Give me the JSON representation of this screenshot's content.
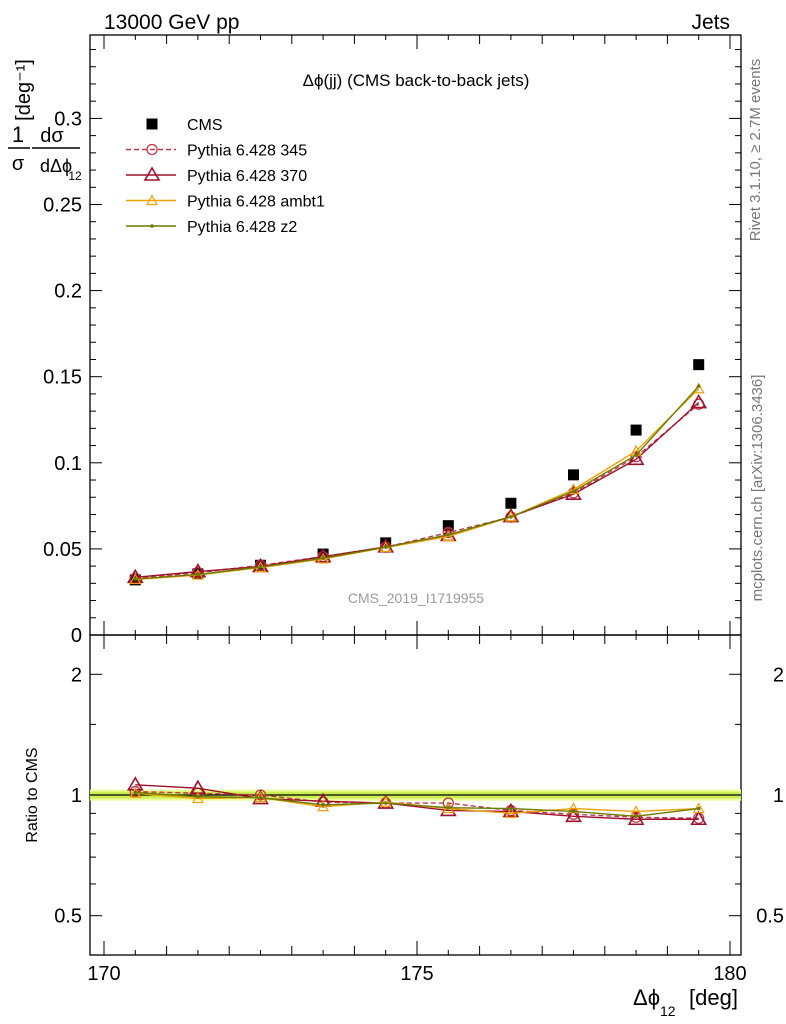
{
  "header": {
    "left": "13000 GeV pp",
    "right": "Jets"
  },
  "side_labels": {
    "rivet": "Rivet 3.1.10, ≥ 2.7M events",
    "mcplots": "mcplots.cern.ch [arXiv:1306.3436]"
  },
  "colors": {
    "cms": "#000000",
    "p345": "#c0394b",
    "p370": "#a0102a",
    "ambt1": "#f0a000",
    "z2": "#6b7a00",
    "band_inner": "#ccee55",
    "band_outer": "#eeff99"
  },
  "chart_data": [
    {
      "type": "scatter",
      "panel": "main",
      "title": "Δϕ(jj) (CMS back-to-back jets)",
      "watermark": "CMS_2019_I1719955",
      "ylabel": "1/σ dσ/dΔϕ_12 [deg^-1]",
      "xlim": [
        170,
        180
      ],
      "ylim": [
        0,
        0.35
      ],
      "yticks": [
        0,
        0.05,
        0.1,
        0.15,
        0.2,
        0.25,
        0.3
      ],
      "ytick_labels": [
        "0",
        "0.05",
        "0.1",
        "0.15",
        "0.2",
        "0.25",
        "0.3"
      ],
      "legend_position": "top-left",
      "x": [
        170.5,
        171.5,
        172.5,
        173.5,
        174.5,
        175.5,
        176.5,
        177.5,
        178.5,
        179.5
      ],
      "series": [
        {
          "name": "CMS",
          "marker": "square",
          "style": "points",
          "color_key": "cms",
          "values": [
            0.032,
            0.0355,
            0.0405,
            0.047,
            0.0535,
            0.0635,
            0.0765,
            0.093,
            0.119,
            0.157
          ]
        },
        {
          "name": "Pythia 6.428 345",
          "marker": "circle",
          "style": "dashed",
          "color_key": "p345",
          "values": [
            0.0328,
            0.0362,
            0.0405,
            0.0455,
            0.051,
            0.0595,
            0.0685,
            0.0825,
            0.1035,
            0.134
          ]
        },
        {
          "name": "Pythia 6.428 370",
          "marker": "triangle",
          "style": "solid",
          "color_key": "p370",
          "values": [
            0.0335,
            0.0368,
            0.0398,
            0.0455,
            0.0512,
            0.0578,
            0.0688,
            0.0818,
            0.102,
            0.135
          ]
        },
        {
          "name": "Pythia 6.428 ambt1",
          "marker": "triangle-small",
          "style": "solid",
          "color_key": "ambt1",
          "values": [
            0.0322,
            0.0348,
            0.0392,
            0.0442,
            0.0508,
            0.0572,
            0.0686,
            0.0845,
            0.1068,
            0.143
          ]
        },
        {
          "name": "Pythia 6.428 z2",
          "marker": "dot",
          "style": "solid",
          "color_key": "z2",
          "values": [
            0.0325,
            0.0352,
            0.0395,
            0.0446,
            0.051,
            0.0582,
            0.0686,
            0.0834,
            0.1045,
            0.1445
          ]
        }
      ]
    },
    {
      "type": "line",
      "panel": "ratio",
      "ylabel": "Ratio to CMS",
      "xlabel": "Δϕ_12 [deg]",
      "xlim": [
        170,
        180
      ],
      "ylim": [
        0.5,
        2.0
      ],
      "log_y": true,
      "xticks": [
        170,
        175,
        180
      ],
      "xtick_labels": [
        "170",
        "175",
        "180"
      ],
      "yticks": [
        0.5,
        1,
        2
      ],
      "ytick_labels": [
        "0.5",
        "1",
        "2"
      ],
      "reference": 1.0,
      "band_half_width": 0.02,
      "x": [
        170.5,
        171.5,
        172.5,
        173.5,
        174.5,
        175.5,
        176.5,
        177.5,
        178.5,
        179.5
      ],
      "series": [
        {
          "name": "Pythia 6.428 345",
          "marker": "circle",
          "style": "dashed",
          "color_key": "p345",
          "values": [
            1.02,
            1.01,
            1.0,
            0.96,
            0.955,
            0.955,
            0.915,
            0.895,
            0.88,
            0.875
          ]
        },
        {
          "name": "Pythia 6.428 370",
          "marker": "triangle",
          "style": "solid",
          "color_key": "p370",
          "values": [
            1.06,
            1.04,
            0.98,
            0.965,
            0.955,
            0.915,
            0.91,
            0.885,
            0.87,
            0.87
          ]
        },
        {
          "name": "Pythia 6.428 ambt1",
          "marker": "triangle-small",
          "style": "solid",
          "color_key": "ambt1",
          "values": [
            1.01,
            0.98,
            0.985,
            0.935,
            0.96,
            0.925,
            0.9,
            0.925,
            0.91,
            0.925
          ]
        },
        {
          "name": "Pythia 6.428 z2",
          "marker": "dot",
          "style": "solid",
          "color_key": "z2",
          "values": [
            1.015,
            0.99,
            0.985,
            0.945,
            0.955,
            0.93,
            0.925,
            0.91,
            0.885,
            0.925
          ]
        }
      ]
    }
  ]
}
